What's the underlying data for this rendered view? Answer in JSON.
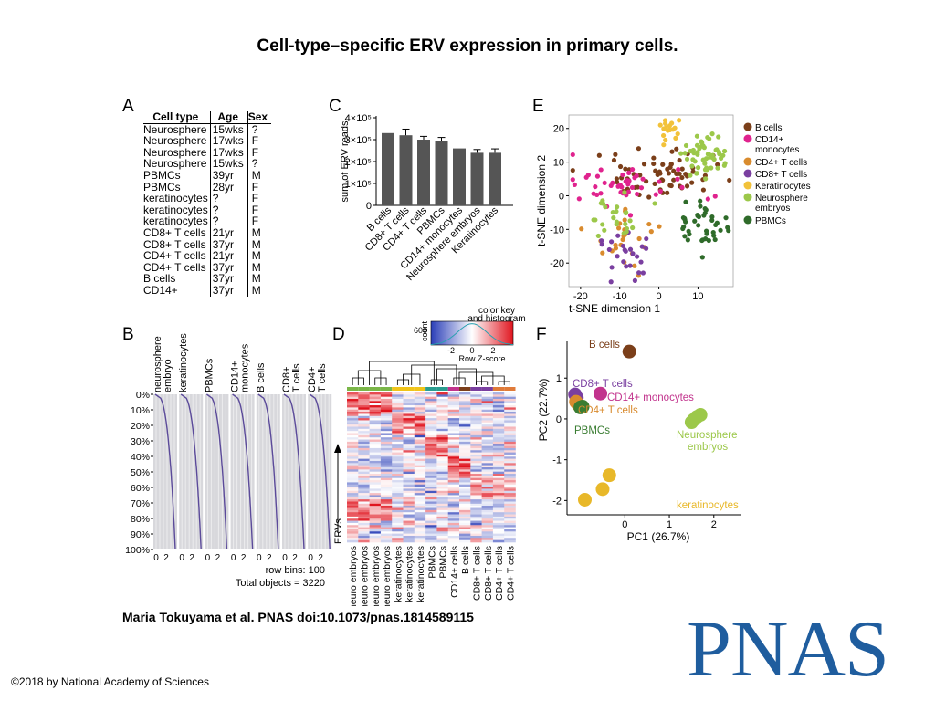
{
  "slide": {
    "title": "Cell-type–specific ERV expression in primary cells.",
    "citation": "Maria Tokuyama et al. PNAS doi:10.1073/pnas.1814589115",
    "copyright": "©2018 by National Academy of Sciences",
    "logo_text": "PNAS"
  },
  "panels": {
    "A": "A",
    "B": "B",
    "C": "C",
    "D": "D",
    "E": "E",
    "F": "F"
  },
  "panel_a": {
    "headers": [
      "Cell type",
      "Age",
      "Sex"
    ],
    "rows": [
      [
        "Neurosphere",
        "15wks",
        "?"
      ],
      [
        "Neurosphere",
        "17wks",
        "F"
      ],
      [
        "Neurosphere",
        "17wks",
        "F"
      ],
      [
        "Neurosphere",
        "15wks",
        "?"
      ],
      [
        "PBMCs",
        "39yr",
        "M"
      ],
      [
        "PBMCs",
        "28yr",
        "F"
      ],
      [
        "keratinocytes",
        "?",
        "F"
      ],
      [
        "keratinocytes",
        "?",
        "F"
      ],
      [
        "keratinocytes",
        "?",
        "F"
      ],
      [
        "CD8+ T cells",
        "21yr",
        "M"
      ],
      [
        "CD8+ T cells",
        "37yr",
        "M"
      ],
      [
        "CD4+ T cells",
        "21yr",
        "M"
      ],
      [
        "CD4+ T cells",
        "37yr",
        "M"
      ],
      [
        "B cells",
        "37yr",
        "M"
      ],
      [
        "CD14+",
        "37yr",
        "M"
      ]
    ]
  },
  "chart_data": [
    {
      "panel": "C",
      "type": "bar",
      "ylabel": "sum of ERV reads",
      "yticks": [
        "0",
        "1×10⁵",
        "2×10⁵",
        "3×10⁵",
        "4×10⁵"
      ],
      "ylim": [
        0,
        400000
      ],
      "categories": [
        "B cells",
        "CD8+ T cells",
        "CD4+ T cells",
        "PBMCs",
        "CD14+ monocytes",
        "Neurosphere embryos",
        "Keratinocytes"
      ],
      "values": [
        330000,
        320000,
        300000,
        292000,
        260000,
        240000,
        240000
      ],
      "errors": [
        0,
        28000,
        15000,
        18000,
        0,
        15000,
        18000
      ],
      "color": "#555555"
    },
    {
      "panel": "E",
      "type": "scatter",
      "xlabel": "t-SNE dimension 1",
      "ylabel": "t-SNE dimension 2",
      "xticks": [
        -20,
        -10,
        0,
        10
      ],
      "yticks": [
        20,
        10,
        0,
        -10,
        -20
      ],
      "xlim": [
        -23,
        19
      ],
      "ylim": [
        -27,
        24
      ],
      "legend": [
        {
          "name": "B cells",
          "color": "#7b3f1a"
        },
        {
          "name": "CD14+ monocytes",
          "color": "#e0238e"
        },
        {
          "name": "CD4+ T cells",
          "color": "#d98b2e"
        },
        {
          "name": "CD8+ T cells",
          "color": "#7a3fa0"
        },
        {
          "name": "Keratinocytes",
          "color": "#f2c23a"
        },
        {
          "name": "Neurosphere embryos",
          "color": "#9cc84a"
        },
        {
          "name": "PBMCs",
          "color": "#2f6b2a"
        }
      ],
      "clusters": [
        {
          "series": "B cells",
          "cx": 0,
          "cy": 6,
          "sx": 9,
          "sy": 3,
          "n": 70
        },
        {
          "series": "CD14+ monocytes",
          "cx": -8,
          "cy": 3,
          "sx": 8,
          "sy": 3,
          "n": 45
        },
        {
          "series": "CD4+ T cells",
          "cx": -9,
          "cy": -14,
          "sx": 4,
          "sy": 4,
          "n": 25
        },
        {
          "series": "CD8+ T cells",
          "cx": -8,
          "cy": -18,
          "sx": 3,
          "sy": 4,
          "n": 25
        },
        {
          "series": "Keratinocytes",
          "cx": 2,
          "cy": 19,
          "sx": 2,
          "sy": 2,
          "n": 18
        },
        {
          "series": "Neurosphere embryos",
          "cx": 11,
          "cy": 12,
          "sx": 4,
          "sy": 3,
          "n": 55
        },
        {
          "series": "Neurosphere embryos",
          "cx": -11,
          "cy": -6,
          "sx": 3,
          "sy": 4,
          "n": 25
        },
        {
          "series": "PBMCs",
          "cx": 11,
          "cy": -8,
          "sx": 3,
          "sy": 4,
          "n": 40
        }
      ]
    },
    {
      "panel": "F",
      "type": "scatter",
      "xlabel": "PC1 (26.7%)",
      "ylabel": "PC2 (22.7%)",
      "xticks": [
        0,
        1,
        2
      ],
      "yticks": [
        1,
        0,
        -1,
        -2
      ],
      "xlim": [
        -1.3,
        2.6
      ],
      "ylim": [
        -2.35,
        1.9
      ],
      "series": [
        {
          "name": "B cells",
          "color": "#7b3f1a",
          "points": [
            [
              0.1,
              1.65
            ]
          ]
        },
        {
          "name": "CD8+ T cells",
          "color": "#7a3fa0",
          "points": [
            [
              -1.12,
              0.6
            ],
            [
              -1.08,
              0.52
            ]
          ]
        },
        {
          "name": "CD14+ monocytes",
          "color": "#c2338d",
          "points": [
            [
              -0.55,
              0.62
            ]
          ]
        },
        {
          "name": "CD4+ T cells",
          "color": "#d98b2e",
          "points": [
            [
              -1.05,
              0.35
            ],
            [
              -1.1,
              0.42
            ]
          ]
        },
        {
          "name": "PBMCs",
          "color": "#3a7d32",
          "points": [
            [
              -1.0,
              0.28
            ],
            [
              -0.95,
              0.3
            ]
          ]
        },
        {
          "name": "Neurosphere embryos",
          "color": "#9cc84a",
          "points": [
            [
              1.55,
              -0.02
            ],
            [
              1.62,
              0.05
            ],
            [
              1.7,
              0.1
            ],
            [
              1.5,
              -0.08
            ]
          ]
        },
        {
          "name": "keratinocytes",
          "color": "#e8b829",
          "points": [
            [
              -0.35,
              -1.38
            ],
            [
              -0.5,
              -1.72
            ],
            [
              -0.9,
              -1.98
            ]
          ]
        }
      ],
      "labels": [
        {
          "text": "B cells",
          "color": "#7b3f1a"
        },
        {
          "text": "CD8+ T cells",
          "color": "#7a3fa0"
        },
        {
          "text": "CD14+ monocytes",
          "color": "#c2338d"
        },
        {
          "text": "CD4+ T cells",
          "color": "#d98b2e"
        },
        {
          "text": "PBMCs",
          "color": "#3a7d32"
        },
        {
          "text": "Neurosphere",
          "color": "#9cc84a"
        },
        {
          "text": "embryos",
          "color": "#9cc84a"
        },
        {
          "text": "keratinocytes",
          "color": "#e8b829"
        }
      ]
    },
    {
      "panel": "B",
      "type": "area",
      "column_labels": [
        "neurosphere embryo",
        "keratinocytes",
        "PBMCs",
        "CD14+ monocytes",
        "B cells",
        "CD8+ T cells",
        "CD4+ T cells"
      ],
      "yticks": [
        "0%",
        "10%",
        "20%",
        "30%",
        "40%",
        "50%",
        "60%",
        "70%",
        "80%",
        "90%",
        "100%"
      ],
      "xticks": [
        "0",
        "2"
      ],
      "row_bins_text": "row bins: 100",
      "total_objects_text": "Total objects = 3220",
      "line_color": "#5b4a9a"
    },
    {
      "panel": "D",
      "type": "heatmap",
      "key_title": "color key",
      "key_subtitle": "and histogram",
      "key_ylabel": "count",
      "key_ytick": "600",
      "key_xticks": [
        "-2",
        "0",
        "2"
      ],
      "key_xlabel": "Row Z-score",
      "row_label": "ERVs",
      "columns": [
        "neuro embryos",
        "neuro embryos",
        "neuro embryos",
        "neuro embryos",
        "keratinocytes",
        "keratinocytes",
        "keratinocytes",
        "PBMCs",
        "PBMCs",
        "CD14+ cells",
        "B cells",
        "CD8+ T cells",
        "CD8+ T cells",
        "CD4+ T cells",
        "CD4+ T cells"
      ],
      "column_group_colors": [
        "#7ab648",
        "#7ab648",
        "#7ab648",
        "#7ab648",
        "#f0c419",
        "#f0c419",
        "#f0c419",
        "#2a9d8f",
        "#2a9d8f",
        "#c2338d",
        "#7b3f1a",
        "#7a3fa0",
        "#7a3fa0",
        "#e07b39",
        "#e07b39"
      ],
      "low_color": "#2b3fb8",
      "mid_color": "#ffffff",
      "high_color": "#e0141e"
    }
  ]
}
